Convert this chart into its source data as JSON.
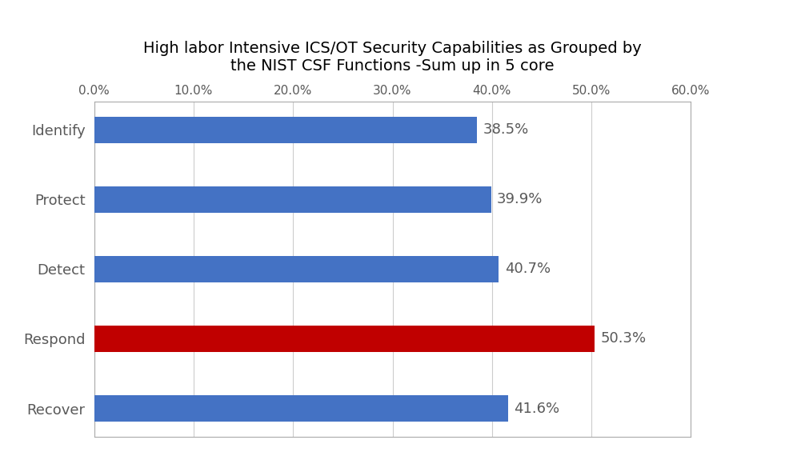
{
  "title_line1": "High labor Intensive ICS/OT Security Capabilities as Grouped by",
  "title_line2": "the NIST CSF Functions -Sum up in 5 core",
  "categories": [
    "Identify",
    "Protect",
    "Detect",
    "Respond",
    "Recover"
  ],
  "values": [
    38.5,
    39.9,
    40.7,
    50.3,
    41.6
  ],
  "bar_colors": [
    "#4472C4",
    "#4472C4",
    "#4472C4",
    "#C00000",
    "#4472C4"
  ],
  "xlim": [
    0,
    60
  ],
  "xticks": [
    0,
    10,
    20,
    30,
    40,
    50,
    60
  ],
  "xtick_labels": [
    "0.0%",
    "10.0%",
    "20.0%",
    "30.0%",
    "40.0%",
    "50.0%",
    "60.0%"
  ],
  "bar_height": 0.38,
  "title_fontsize": 14,
  "ytick_fontsize": 13,
  "xtick_fontsize": 11,
  "value_label_fontsize": 13,
  "background_color": "#FFFFFF",
  "grid_color": "#CCCCCC",
  "text_color": "#595959",
  "spine_color": "#AAAAAA"
}
